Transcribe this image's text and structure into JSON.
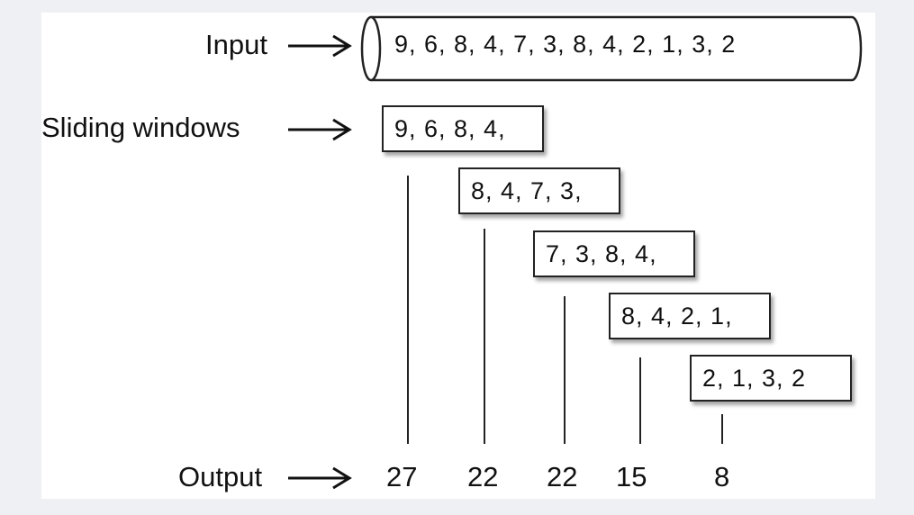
{
  "labels": {
    "input": "Input",
    "sliding_windows": "Sliding windows",
    "output": "Output"
  },
  "input_stream": "9,  6,  8,  4,  7,  3,  8,  4,  2,  1,  3,  2",
  "windows": [
    "9,  6,  8,  4,",
    "8,  4,  7,  3,",
    "7,  3,  8,  4,",
    "8,  4,  2, 1,",
    "2, 1,  3,  2"
  ],
  "outputs": [
    "27",
    "22",
    "22",
    "15",
    "8"
  ],
  "colors": {
    "stroke": "#222222",
    "text": "#111111",
    "background": "#ffffff"
  }
}
